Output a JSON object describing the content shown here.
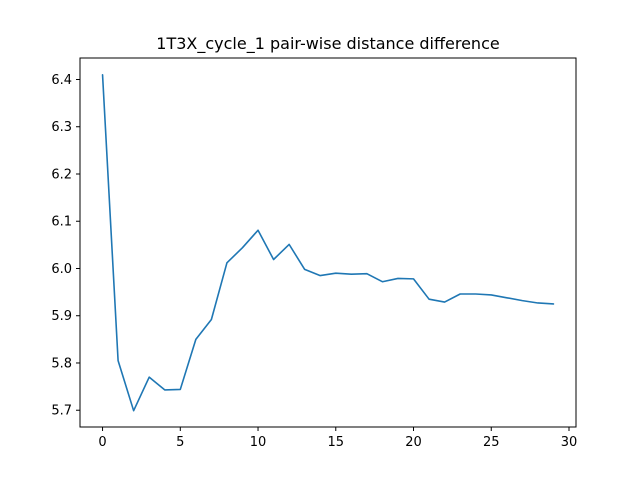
{
  "chart_data": {
    "type": "line",
    "title": "1T3X_cycle_1 pair-wise distance difference",
    "xlabel": "",
    "ylabel": "",
    "xlim": [
      -1.45,
      30.45
    ],
    "ylim": [
      5.6645,
      6.4455
    ],
    "x_ticks": [
      0,
      5,
      10,
      15,
      20,
      25,
      30
    ],
    "y_ticks": [
      5.7,
      5.8,
      5.9,
      6.0,
      6.1,
      6.2,
      6.3,
      6.4
    ],
    "x_tick_labels": [
      "0",
      "5",
      "10",
      "15",
      "20",
      "25",
      "30"
    ],
    "y_tick_labels": [
      "5.7",
      "5.8",
      "5.9",
      "6.0",
      "6.1",
      "6.2",
      "6.3",
      "6.4"
    ],
    "grid": false,
    "legend": "none",
    "line_color": "#1f77b4",
    "series": [
      {
        "x": [
          0,
          1,
          2,
          3,
          4,
          5,
          6,
          7,
          8,
          9,
          10,
          11,
          12,
          13,
          14,
          15,
          16,
          17,
          18,
          19,
          20,
          21,
          22,
          23,
          24,
          25,
          26,
          27,
          28,
          29
        ],
        "values": [
          6.41,
          5.805,
          5.699,
          5.77,
          5.743,
          5.744,
          5.85,
          5.892,
          6.012,
          6.044,
          6.081,
          6.019,
          6.051,
          5.998,
          5.985,
          5.99,
          5.988,
          5.989,
          5.972,
          5.979,
          5.978,
          5.935,
          5.929,
          5.946,
          5.946,
          5.944,
          5.938,
          5.932,
          5.927,
          5.925
        ]
      }
    ]
  }
}
